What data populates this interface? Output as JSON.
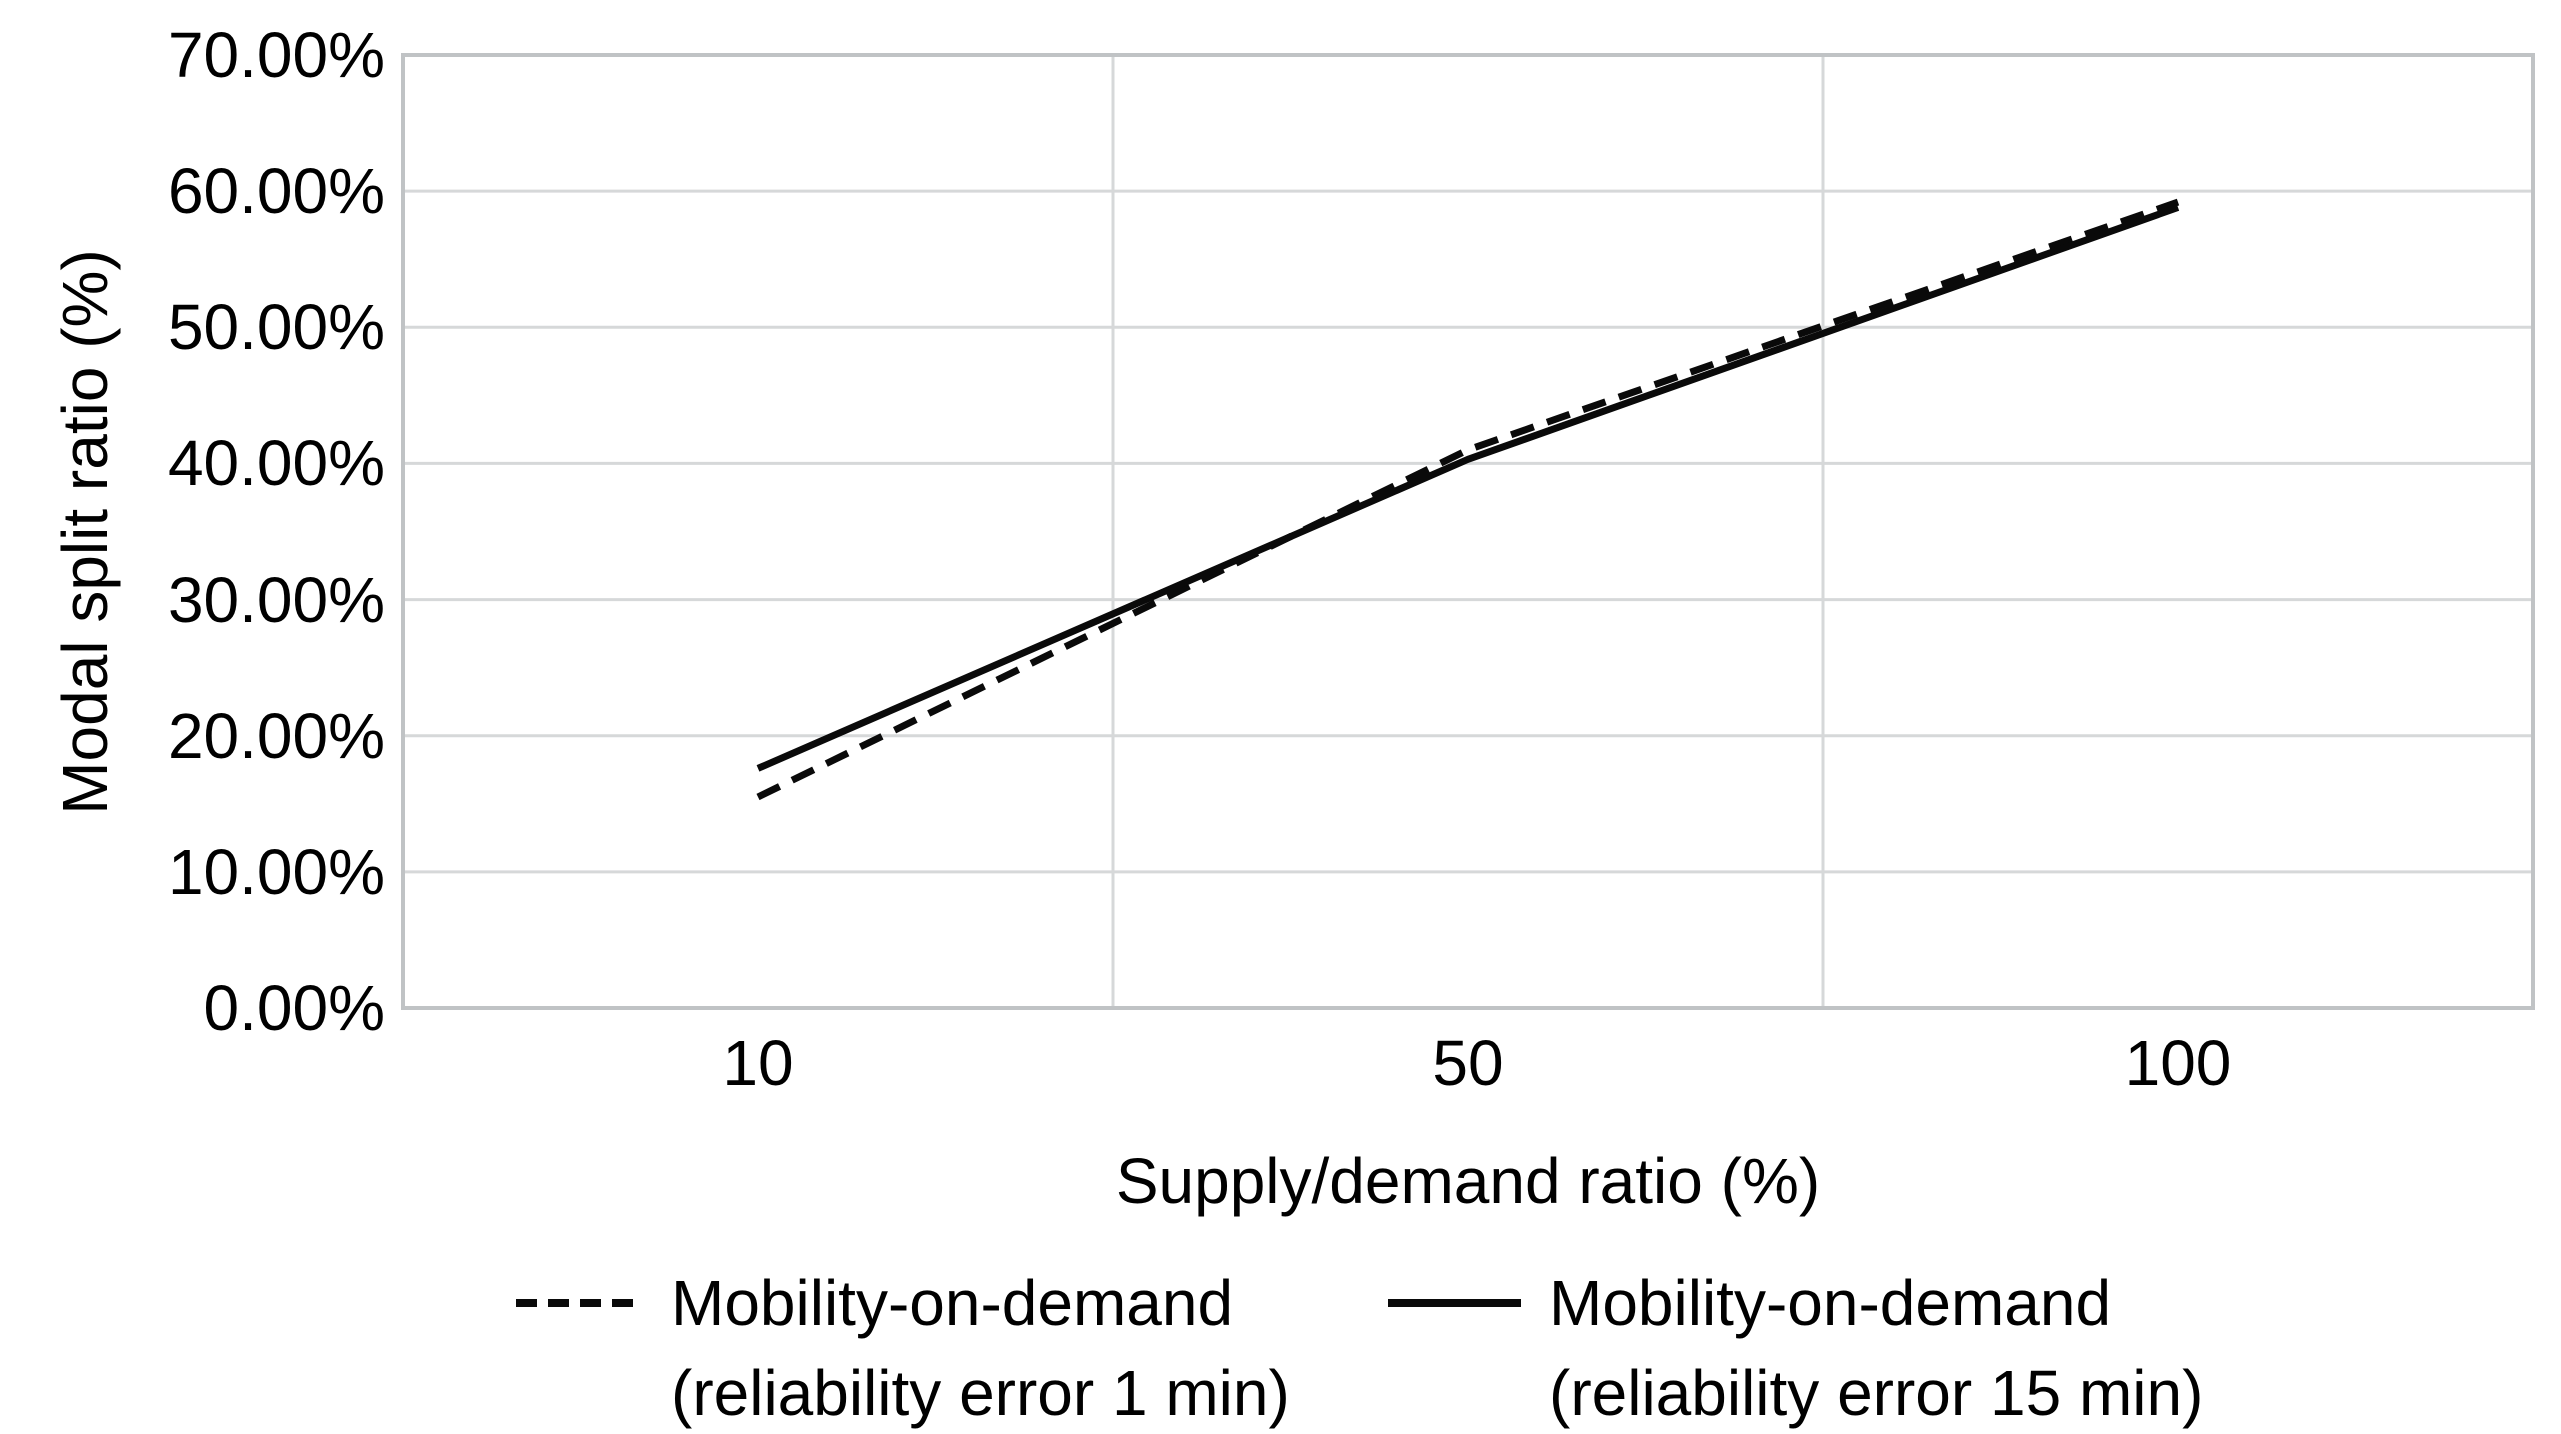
{
  "figure": {
    "background": "#ffffff",
    "ink_color": "#0a0a0a",
    "gridline_color": "#d6d8d9",
    "axis_border_color": "#c0c3c5"
  },
  "chart_data": {
    "type": "line",
    "categories": [
      "10",
      "50",
      "100"
    ],
    "series": [
      {
        "name": "Mobility-on-demand (reliability error 1 min)",
        "style": "dashed",
        "values": [
          15.5,
          41.0,
          59.2
        ]
      },
      {
        "name": "Mobility-on-demand (reliability error 15 min)",
        "style": "solid",
        "values": [
          17.6,
          40.3,
          58.8
        ]
      }
    ],
    "title": "",
    "xlabel": "Supply/demand ratio (%)",
    "ylabel": "Modal split ratio (%)",
    "ylim": [
      0,
      70
    ],
    "y_tick_step": 10,
    "y_tick_labels": [
      "0.00%",
      "10.00%",
      "20.00%",
      "30.00%",
      "40.00%",
      "50.00%",
      "60.00%",
      "70.00%"
    ],
    "grid": true,
    "legend_position": "bottom"
  },
  "legend": {
    "items": [
      {
        "style": "dashed",
        "line1": "Mobility-on-demand",
        "line2": "(reliability error 1 min)"
      },
      {
        "style": "solid",
        "line1": "Mobility-on-demand",
        "line2": "(reliability error 15 min)"
      }
    ]
  }
}
